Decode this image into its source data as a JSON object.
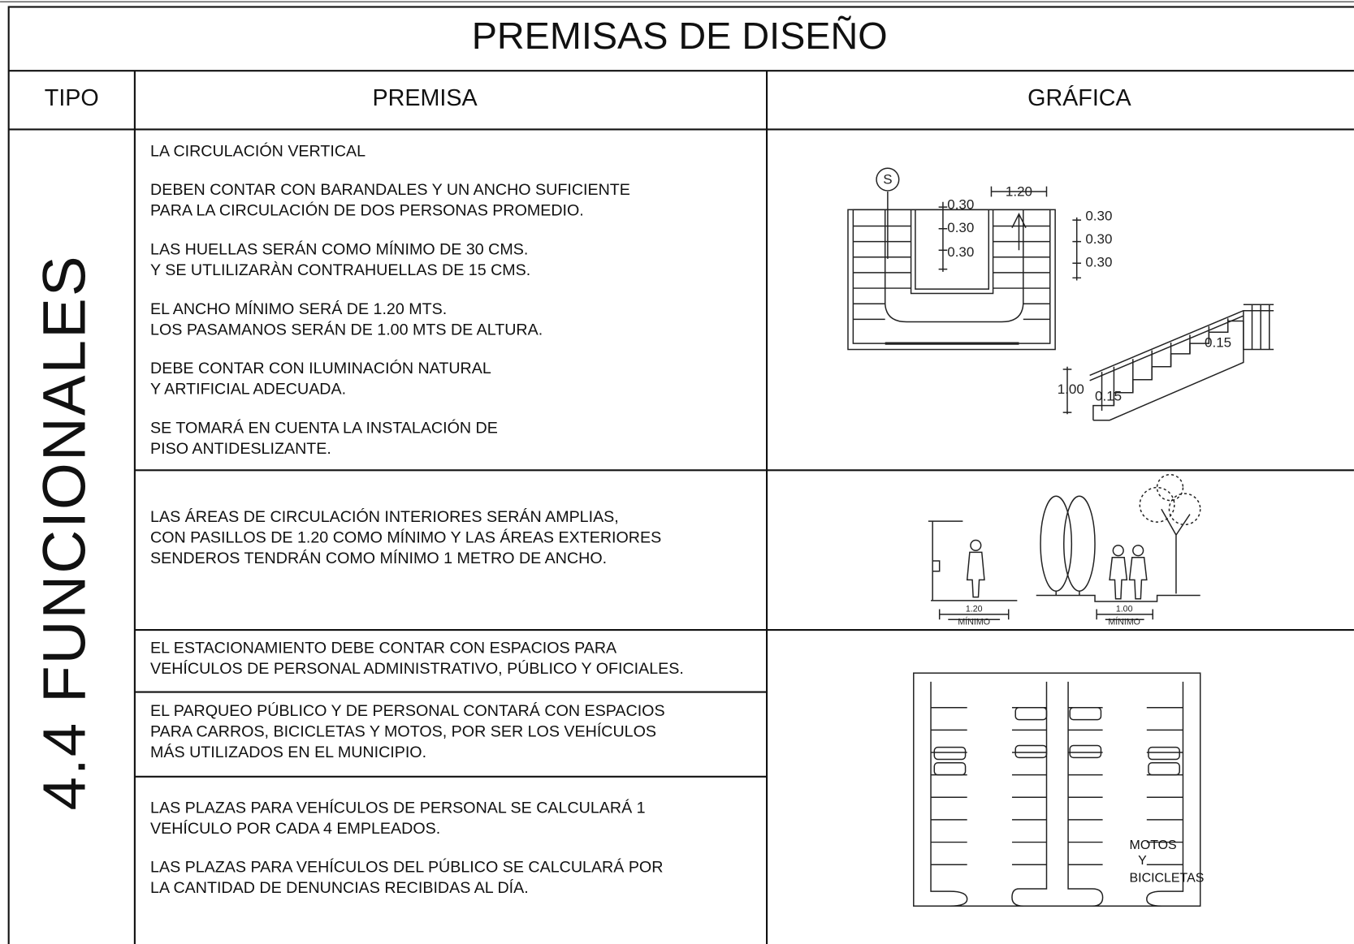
{
  "title": "PREMISAS DE DISEÑO",
  "headers": [
    "TIPO",
    "PREMISA",
    "GRÁFICA"
  ],
  "type": "4.4 FUNCIONALES",
  "table": {
    "rows": [
      {
        "paragraphs": [
          [
            "LA CIRCULACIÓN VERTICAL"
          ],
          [
            "DEBEN CONTAR CON BARANDALES Y UN ANCHO SUFICIENTE",
            "PARA LA CIRCULACIÓN DE DOS PERSONAS PROMEDIO."
          ],
          [
            "LAS HUELLAS SERÁN COMO MÍNIMO DE 30 CMS.",
            "Y SE UTLILIZARÀN CONTRAHUELLAS DE 15 CMS."
          ],
          [
            "EL ANCHO MÍNIMO SERÁ DE 1.20 MTS.",
            "LOS PASAMANOS SERÁN DE 1.00 MTS DE ALTURA."
          ],
          [
            "DEBE CONTAR CON ILUMINACIÓN NATURAL",
            "Y ARTIFICIAL ADECUADA."
          ],
          [
            "SE TOMARÁ EN CUENTA LA INSTALACIÓN DE",
            "PISO ANTIDESLIZANTE."
          ]
        ]
      },
      {
        "paragraphs": [
          [
            "LAS ÁREAS DE CIRCULACIÓN INTERIORES SERÁN AMPLIAS,",
            "CON PASILLOS DE 1.20 COMO MÍNIMO Y LAS ÁREAS EXTERIORES",
            "SENDEROS TENDRÁN COMO MÍNIMO 1 METRO DE ANCHO."
          ]
        ]
      },
      {
        "paragraphs": [
          [
            "EL ESTACIONAMIENTO DEBE CONTAR CON ESPACIOS PARA",
            "VEHÍCULOS DE PERSONAL ADMINISTRATIVO, PÚBLICO Y OFICIALES."
          ]
        ]
      },
      {
        "paragraphs": [
          [
            "EL PARQUEO PÚBLICO Y DE PERSONAL CONTARÁ CON ESPACIOS",
            "PARA CARROS, BICICLETAS Y MOTOS, POR SER LOS VEHÍCULOS",
            "MÁS UTILIZADOS EN EL MUNICIPIO."
          ]
        ]
      },
      {
        "paragraphs": [
          [
            "LAS PLAZAS PARA VEHÍCULOS DE PERSONAL SE CALCULARÁ 1",
            "VEHÍCULO POR CADA 4 EMPLEADOS."
          ],
          [
            "LAS PLAZAS PARA VEHÍCULOS DEL PÚBLICO SE CALCULARÁ POR",
            "LA CANTIDAD DE DENUNCIAS RECIBIDAS AL DÍA."
          ]
        ]
      }
    ]
  },
  "graphics": {
    "stair_plan": {
      "marker": "S",
      "width": "1.20",
      "treads_left": [
        "0.30",
        "0.30",
        "0.30"
      ],
      "treads_right": [
        "0.30",
        "0.30",
        "0.30"
      ]
    },
    "stair_section": {
      "riser_top": "0.15",
      "rail_height": "1.00",
      "riser_bottom": "0.15"
    },
    "walkways": [
      {
        "width": "1.20",
        "note": "MÍNIMO"
      },
      {
        "width": "1.00",
        "note": "MÍNIMO"
      }
    ],
    "parking": {
      "label": [
        "MOTOS",
        "Y",
        "BICICLETAS"
      ]
    }
  }
}
